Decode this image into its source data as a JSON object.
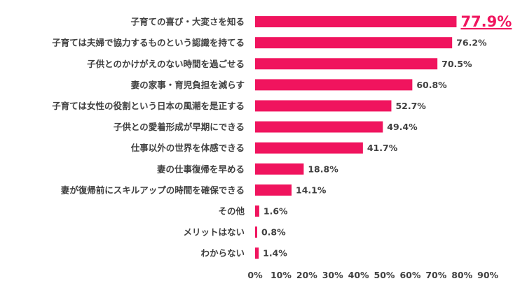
{
  "chart_data": {
    "type": "bar",
    "orientation": "horizontal",
    "categories": [
      "子育ての喜び・大変さを知る",
      "子育ては夫婦で協力するものという認識を持てる",
      "子供とのかけがえのない時間を過ごせる",
      "妻の家事・育児負担を減らす",
      "子育ては女性の役割という日本の風潮を是正する",
      "子供との愛着形成が早期にできる",
      "仕事以外の世界を体感できる",
      "妻の仕事復帰を早める",
      "妻が復帰前にスキルアップの時間を確保できる",
      "その他",
      "メリットはない",
      "わからない"
    ],
    "values": [
      77.9,
      76.2,
      70.5,
      60.8,
      52.7,
      49.4,
      41.7,
      18.8,
      14.1,
      1.6,
      0.8,
      1.4
    ],
    "value_labels": [
      "77.9%",
      "76.2%",
      "70.5%",
      "60.8%",
      "52.7%",
      "49.4%",
      "41.7%",
      "18.8%",
      "14.1%",
      "1.6%",
      "0.8%",
      "1.4%"
    ],
    "highlight_index": 0,
    "xlim": [
      0,
      90
    ],
    "xticks": [
      0,
      10,
      20,
      30,
      40,
      50,
      60,
      70,
      80,
      90
    ],
    "xtick_labels": [
      "0%",
      "10%",
      "20%",
      "30%",
      "40%",
      "50%",
      "60%",
      "70%",
      "80%",
      "90%"
    ],
    "title": "",
    "xlabel": "",
    "ylabel": "",
    "grid": false,
    "colors": {
      "bar": "#f0145e",
      "highlight_text": "#f0145e",
      "text": "#404040"
    }
  }
}
